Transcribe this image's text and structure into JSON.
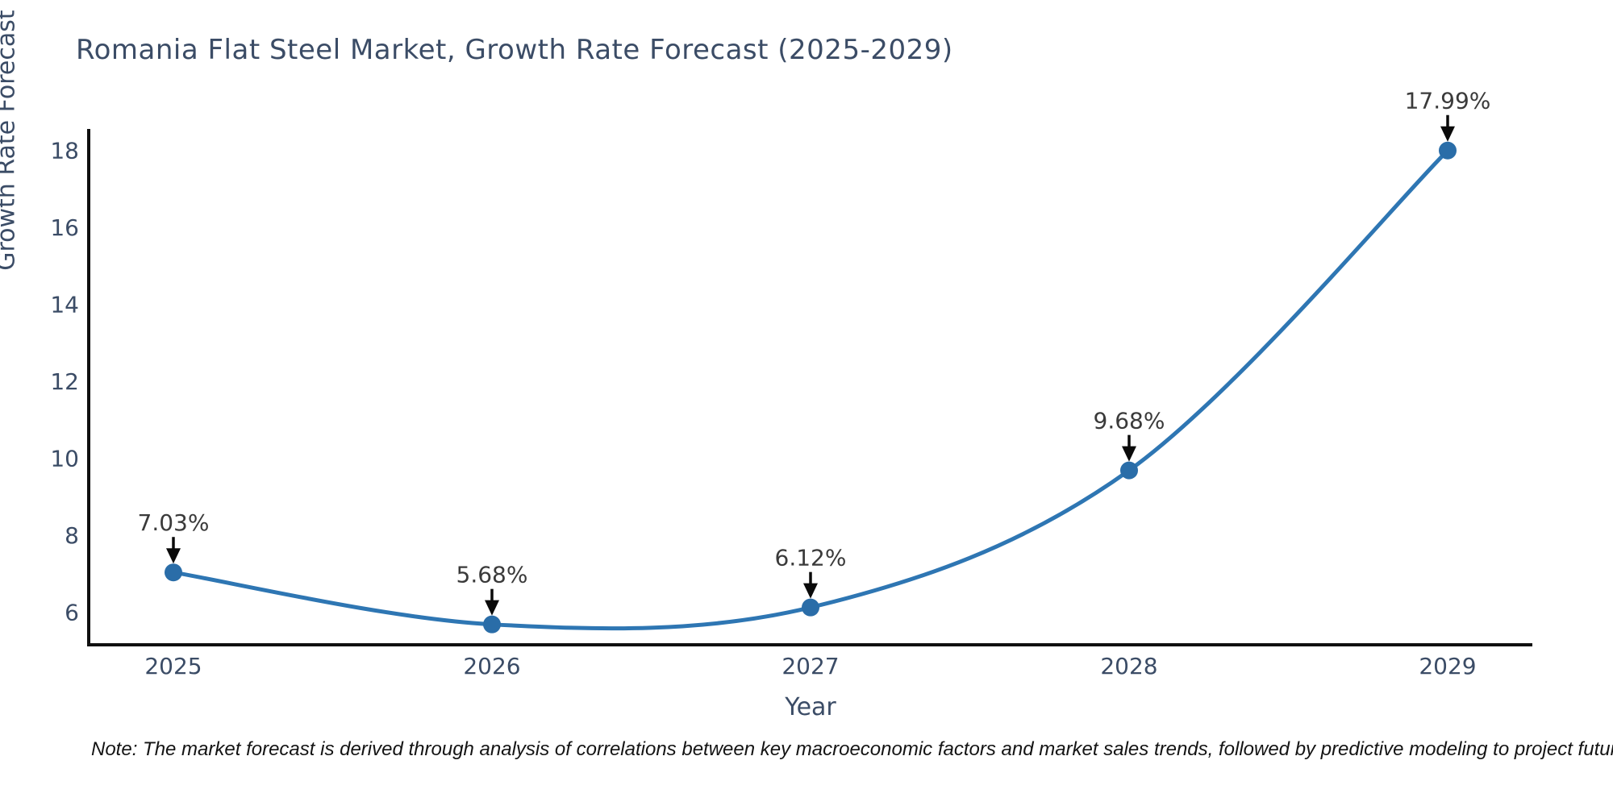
{
  "chart_data": {
    "type": "line",
    "title": "Romania Flat Steel Market, Growth Rate Forecast (2025-2029)",
    "xlabel": "Year",
    "ylabel": "Growth Rate Forecast",
    "categories": [
      2025,
      2026,
      2027,
      2028,
      2029
    ],
    "series": [
      {
        "name": "Growth Rate Forecast",
        "values": [
          7.03,
          5.68,
          6.12,
          9.68,
          17.99
        ],
        "point_labels": [
          "7.03%",
          "5.68%",
          "6.12%",
          "9.68%",
          "17.99%"
        ]
      }
    ],
    "y_ticks": [
      6,
      8,
      10,
      12,
      14,
      16,
      18
    ],
    "ylim": [
      5.15,
      18.55
    ],
    "grid": false,
    "legend_position": "none",
    "line_shape": "spline",
    "colors": {
      "line": "#2e76b3",
      "marker": "#2a6da8",
      "axis": "#101010",
      "tick_text": "#3b4c66",
      "annotation_text": "#3a3a3a",
      "annotation_arrow": "#0a0a0a",
      "background": "#ffffff"
    }
  },
  "note": "Note: The market forecast is derived through analysis of correlations between key macroeconomic factors and market sales trends, followed by predictive modeling to project future sales."
}
